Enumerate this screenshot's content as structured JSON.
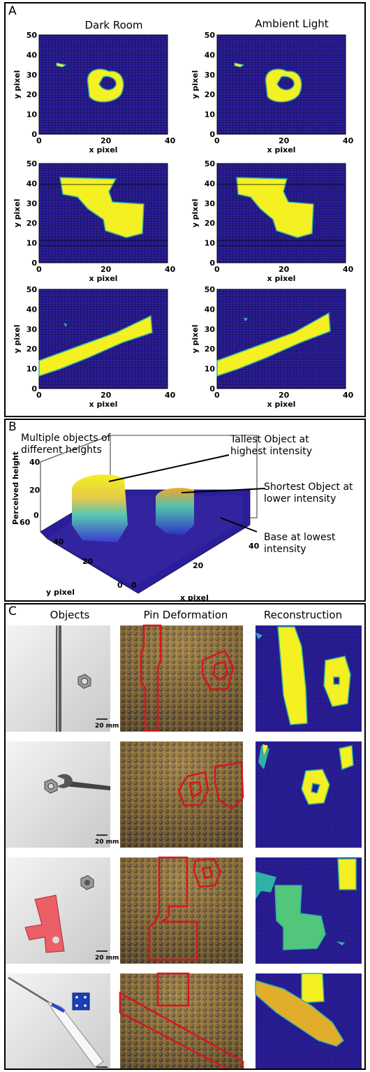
{
  "panel_a": {
    "label": "A",
    "column_titles": [
      "Dark Room",
      "Ambient Light"
    ],
    "xlabel": "x pixel",
    "ylabel": "y pixel",
    "x_ticks": [
      "0",
      "20",
      "40"
    ],
    "y_ticks": [
      "0",
      "10",
      "20",
      "30",
      "40",
      "50"
    ]
  },
  "panel_b": {
    "label": "B",
    "title_text": "Multiple objects of different heights",
    "zlabel": "Perceived height",
    "ylabel": "y pixel",
    "xlabel": "x pixel",
    "z_ticks": [
      "0",
      "20",
      "40"
    ],
    "y_ticks": [
      "0",
      "20",
      "40",
      "60"
    ],
    "x_ticks": [
      "0",
      "20",
      "40"
    ],
    "annotations": {
      "tallest": [
        "Tallest Object at",
        "highest intensity"
      ],
      "shortest": [
        "Shortest Object at",
        "lower intensity"
      ],
      "base": [
        "Base at lowest",
        "intensity"
      ]
    }
  },
  "panel_c": {
    "label": "C",
    "column_titles": [
      "Objects",
      "Pin Deformation",
      "Reconstruction"
    ],
    "scale_bar": "20 mm"
  },
  "colors": {
    "background_purple": "#2b1e9a",
    "object_yellow": "#f4f021",
    "edge_teal": "#2fb1a6",
    "deformation_outline": "#d8151f"
  }
}
